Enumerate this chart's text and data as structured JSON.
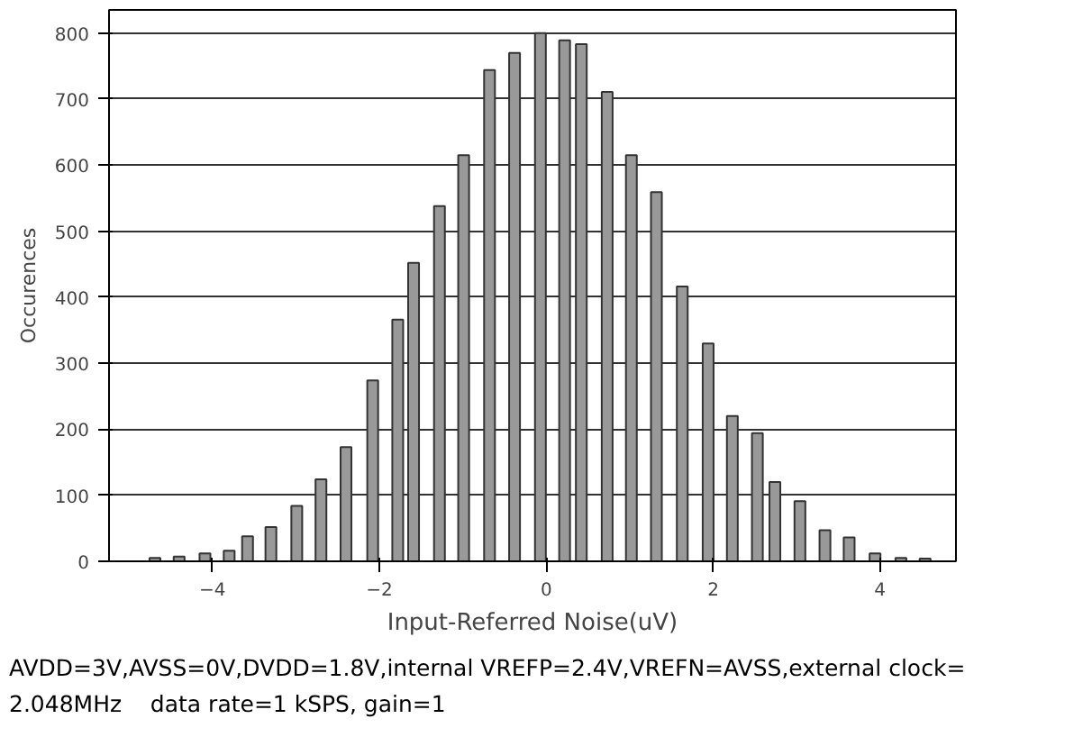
{
  "chart_data": {
    "type": "bar",
    "xlabel": "Input-Referred Noise(uV)",
    "ylabel": "Occurences",
    "x": [
      -4.69,
      -4.4,
      -4.09,
      -3.8,
      -3.58,
      -3.3,
      -2.99,
      -2.7,
      -2.4,
      -2.08,
      -1.78,
      -1.59,
      -1.28,
      -0.99,
      -0.68,
      -0.38,
      -0.07,
      0.22,
      0.42,
      0.73,
      1.02,
      1.32,
      1.63,
      1.94,
      2.23,
      2.53,
      2.74,
      3.04,
      3.34,
      3.63,
      3.94,
      4.25,
      4.54
    ],
    "values": [
      5,
      7,
      12,
      16,
      38,
      52,
      84,
      124,
      173,
      274,
      366,
      452,
      538,
      615,
      744,
      770,
      800,
      789,
      783,
      711,
      615,
      559,
      416,
      330,
      220,
      194,
      120,
      91,
      47,
      36,
      12,
      5,
      4
    ],
    "color": "#999999",
    "xlim": [
      -5.24,
      4.91
    ],
    "ylim": [
      0,
      835
    ],
    "xticks": [
      -4,
      -2,
      0,
      2,
      4
    ],
    "yticks": [
      0,
      100,
      200,
      300,
      400,
      500,
      600,
      700,
      800
    ],
    "grid": "y",
    "annotations": [
      "AVDD=3V,AVSS=0V,DVDD=1.8V,internal VREFP=2.4V,VREFN=AVSS,external clock=",
      "2.048MHz     data rate=1 kSPS, gain=1"
    ]
  }
}
